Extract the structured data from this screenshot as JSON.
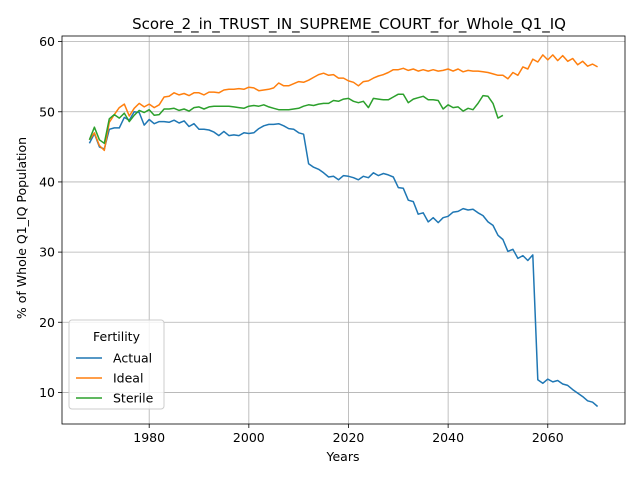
{
  "chart_data": {
    "type": "line",
    "title": "Score_2_in_TRUST_IN_SUPREME_COURT_for_Whole_Q1_IQ",
    "xlabel": "Years",
    "ylabel": "% of Whole Q1_IQ Population",
    "xlim": [
      1962.5,
      2075.5
    ],
    "ylim": [
      5.5,
      60.8
    ],
    "xticks": [
      1980,
      2000,
      2020,
      2040,
      2060
    ],
    "yticks": [
      10,
      20,
      30,
      40,
      50,
      60
    ],
    "grid": true,
    "legend": {
      "title": "Fertility",
      "placement": "lower-left"
    },
    "series": [
      {
        "name": "Actual",
        "color": "#1f77b4",
        "x": [
          1968,
          1969,
          1970,
          1971,
          1972,
          1973,
          1974,
          1975,
          1976,
          1977,
          1978,
          1979,
          1980,
          1981,
          1982,
          1983,
          1984,
          1985,
          1986,
          1987,
          1988,
          1989,
          1990,
          1991,
          1992,
          1993,
          1994,
          1995,
          1996,
          1997,
          1998,
          1999,
          2000,
          2001,
          2002,
          2003,
          2004,
          2005,
          2006,
          2007,
          2008,
          2009,
          2010,
          2011,
          2012,
          2013,
          2014,
          2015,
          2016,
          2017,
          2018,
          2019,
          2020,
          2021,
          2022,
          2023,
          2024,
          2025,
          2026,
          2027,
          2028,
          2029,
          2030,
          2031,
          2032,
          2033,
          2034,
          2035,
          2036,
          2037,
          2038,
          2039,
          2040,
          2041,
          2042,
          2043,
          2044,
          2045,
          2046,
          2047,
          2048,
          2049,
          2050,
          2051,
          2052,
          2053,
          2054,
          2055,
          2056,
          2057,
          2058,
          2059,
          2060,
          2061,
          2062,
          2063,
          2064,
          2065,
          2066,
          2067,
          2068,
          2069,
          2070
        ],
        "values": [
          45.5,
          46.9,
          45.0,
          44.7,
          47.5,
          47.7,
          47.7,
          49.2,
          48.8,
          50.0,
          49.9,
          48.1,
          48.9,
          48.3,
          48.6,
          48.6,
          48.5,
          48.8,
          48.4,
          48.7,
          47.9,
          48.3,
          47.5,
          47.5,
          47.4,
          47.1,
          46.6,
          47.2,
          46.6,
          46.7,
          46.6,
          47.0,
          46.9,
          47.0,
          47.6,
          48.0,
          48.2,
          48.2,
          48.3,
          48.0,
          47.6,
          47.5,
          47.0,
          46.8,
          42.6,
          42.1,
          41.8,
          41.3,
          40.7,
          40.8,
          40.3,
          40.9,
          40.8,
          40.6,
          40.3,
          40.8,
          40.6,
          41.3,
          40.9,
          41.2,
          41.0,
          40.7,
          39.2,
          39.1,
          37.4,
          37.2,
          35.4,
          35.6,
          34.3,
          34.9,
          34.2,
          34.9,
          35.1,
          35.7,
          35.8,
          36.2,
          36.0,
          36.1,
          35.6,
          35.2,
          34.3,
          33.8,
          32.4,
          31.8,
          30.1,
          30.4,
          29.1,
          29.5,
          28.8,
          29.6,
          11.8,
          11.3,
          11.9,
          11.5,
          11.7,
          11.2,
          11.0,
          10.4,
          9.9,
          9.4,
          8.8,
          8.6,
          8.0
        ]
      },
      {
        "name": "Ideal",
        "color": "#ff7f0e",
        "x": [
          1968,
          1969,
          1970,
          1971,
          1972,
          1973,
          1974,
          1975,
          1976,
          1977,
          1978,
          1979,
          1980,
          1981,
          1982,
          1983,
          1984,
          1985,
          1986,
          1987,
          1988,
          1989,
          1990,
          1991,
          1992,
          1993,
          1994,
          1995,
          1996,
          1997,
          1998,
          1999,
          2000,
          2001,
          2002,
          2003,
          2004,
          2005,
          2006,
          2007,
          2008,
          2009,
          2010,
          2011,
          2012,
          2013,
          2014,
          2015,
          2016,
          2017,
          2018,
          2019,
          2020,
          2021,
          2022,
          2023,
          2024,
          2025,
          2026,
          2027,
          2028,
          2029,
          2030,
          2031,
          2032,
          2033,
          2034,
          2035,
          2036,
          2037,
          2038,
          2039,
          2040,
          2041,
          2042,
          2043,
          2044,
          2045,
          2046,
          2047,
          2048,
          2049,
          2050,
          2051,
          2052,
          2053,
          2054,
          2055,
          2056,
          2057,
          2058,
          2059,
          2060,
          2061,
          2062,
          2063,
          2064,
          2065,
          2066,
          2067,
          2068,
          2069,
          2070
        ],
        "values": [
          46.0,
          47.0,
          45.2,
          44.5,
          48.5,
          49.6,
          50.6,
          51.1,
          49.4,
          50.5,
          51.2,
          50.7,
          51.1,
          50.6,
          51.0,
          52.1,
          52.2,
          52.7,
          52.4,
          52.6,
          52.3,
          52.7,
          52.7,
          52.4,
          52.8,
          52.8,
          52.7,
          53.1,
          53.2,
          53.2,
          53.3,
          53.2,
          53.5,
          53.4,
          53.0,
          53.1,
          53.2,
          53.4,
          54.1,
          53.7,
          53.7,
          54.0,
          54.3,
          54.2,
          54.5,
          54.9,
          55.3,
          55.5,
          55.2,
          55.3,
          54.8,
          54.8,
          54.4,
          54.2,
          53.7,
          54.3,
          54.4,
          54.8,
          55.1,
          55.3,
          55.6,
          56.0,
          56.0,
          56.2,
          55.9,
          56.1,
          55.8,
          56.0,
          55.8,
          56.0,
          55.8,
          55.9,
          56.1,
          55.8,
          56.1,
          55.7,
          55.9,
          55.8,
          55.8,
          55.7,
          55.6,
          55.4,
          55.2,
          55.2,
          54.7,
          55.6,
          55.2,
          56.4,
          56.1,
          57.5,
          57.1,
          58.1,
          57.4,
          58.1,
          57.3,
          58.0,
          57.2,
          57.6,
          56.7,
          57.2,
          56.5,
          56.8,
          56.4
        ]
      },
      {
        "name": "Sterile",
        "color": "#2ca02c",
        "x": [
          1968,
          1969,
          1970,
          1971,
          1972,
          1973,
          1974,
          1975,
          1976,
          1977,
          1978,
          1979,
          1980,
          1981,
          1982,
          1983,
          1984,
          1985,
          1986,
          1987,
          1988,
          1989,
          1990,
          1991,
          1992,
          1993,
          1994,
          1995,
          1996,
          1997,
          1998,
          1999,
          2000,
          2001,
          2002,
          2003,
          2004,
          2005,
          2006,
          2007,
          2008,
          2009,
          2010,
          2011,
          2012,
          2013,
          2014,
          2015,
          2016,
          2017,
          2018,
          2019,
          2020,
          2021,
          2022,
          2023,
          2024,
          2025,
          2026,
          2027,
          2028,
          2029,
          2030,
          2031,
          2032,
          2033,
          2034,
          2035,
          2036,
          2037,
          2038,
          2039,
          2040,
          2041,
          2042,
          2043,
          2044,
          2045,
          2046,
          2047,
          2048,
          2049,
          2050,
          2051
        ],
        "values": [
          46.0,
          47.8,
          46.0,
          45.5,
          49.0,
          49.6,
          49.1,
          49.8,
          48.6,
          49.5,
          50.2,
          49.9,
          50.3,
          49.5,
          49.6,
          50.4,
          50.4,
          50.5,
          50.2,
          50.4,
          50.1,
          50.6,
          50.7,
          50.4,
          50.7,
          50.8,
          50.8,
          50.8,
          50.8,
          50.7,
          50.6,
          50.5,
          50.8,
          50.9,
          50.8,
          51.0,
          50.7,
          50.5,
          50.3,
          50.3,
          50.3,
          50.4,
          50.5,
          50.8,
          51.0,
          50.9,
          51.1,
          51.2,
          51.2,
          51.6,
          51.5,
          51.8,
          51.9,
          51.5,
          51.3,
          51.5,
          50.6,
          51.9,
          51.8,
          51.7,
          51.7,
          52.1,
          52.5,
          52.5,
          51.3,
          51.8,
          52.0,
          52.2,
          51.7,
          51.7,
          51.6,
          50.4,
          51.0,
          50.6,
          50.7,
          50.1,
          50.5,
          50.3,
          51.2,
          52.3,
          52.2,
          51.2,
          49.1,
          49.5
        ]
      }
    ]
  }
}
